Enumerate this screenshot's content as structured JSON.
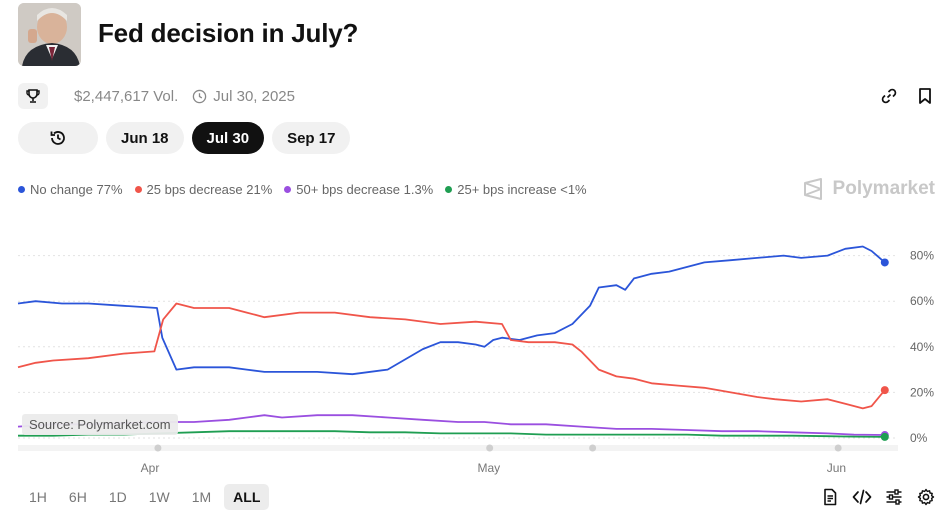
{
  "header": {
    "title": "Fed decision in July?",
    "volume": "$2,447,617 Vol.",
    "end_date": "Jul 30, 2025"
  },
  "tabs": {
    "items": [
      {
        "label": "Jun 18",
        "active": false
      },
      {
        "label": "Jul 30",
        "active": true
      },
      {
        "label": "Sep 17",
        "active": false
      }
    ]
  },
  "legend": {
    "items": [
      {
        "label": "No change 77%",
        "color": "#2b55d9"
      },
      {
        "label": "25 bps decrease 21%",
        "color": "#f0554a"
      },
      {
        "label": "50+ bps decrease 1.3%",
        "color": "#9a4fe0"
      },
      {
        "label": "25+ bps increase <1%",
        "color": "#1f9e52"
      }
    ]
  },
  "brand": "Polymarket",
  "source_label": "Source: Polymarket.com",
  "time_ranges": {
    "items": [
      "1H",
      "6H",
      "1D",
      "1W",
      "1M",
      "ALL"
    ],
    "active": "ALL"
  },
  "colors": {
    "no_change": "#2b55d9",
    "cut_25": "#f0554a",
    "cut_50": "#9a4fe0",
    "hike_25": "#1f9e52"
  },
  "icons": [
    "trophy-icon",
    "clock-icon",
    "link-icon",
    "bookmark-icon",
    "history-icon",
    "polymarket-logo-icon",
    "document-icon",
    "embed-icon",
    "sliders-icon",
    "settings-icon"
  ],
  "chart_data": {
    "type": "line",
    "x_ticks": [
      "Apr",
      "May",
      "Jun"
    ],
    "y_ticks": [
      "0%",
      "20%",
      "40%",
      "60%",
      "80%"
    ],
    "ylim": [
      0,
      90
    ],
    "y_unit": "%",
    "grid": true,
    "x_domain": [
      0,
      100
    ],
    "x_tick_positions": [
      15,
      53.5,
      93
    ],
    "series": [
      {
        "name": "No change",
        "color": "#2b55d9",
        "end_value": 77,
        "points": [
          [
            0,
            59
          ],
          [
            2,
            60
          ],
          [
            5,
            59
          ],
          [
            8,
            59
          ],
          [
            12,
            58
          ],
          [
            15.8,
            57
          ],
          [
            16.4,
            44
          ],
          [
            18,
            30
          ],
          [
            20,
            31
          ],
          [
            24,
            31
          ],
          [
            26,
            30
          ],
          [
            28,
            29
          ],
          [
            34,
            29
          ],
          [
            38,
            28
          ],
          [
            42,
            30
          ],
          [
            46,
            39
          ],
          [
            48,
            42
          ],
          [
            50,
            42
          ],
          [
            52,
            41
          ],
          [
            53,
            40
          ],
          [
            54,
            43
          ],
          [
            55,
            44
          ],
          [
            57,
            43
          ],
          [
            59,
            45
          ],
          [
            61,
            46
          ],
          [
            63,
            50
          ],
          [
            65,
            58
          ],
          [
            66,
            66
          ],
          [
            68,
            67
          ],
          [
            69,
            65
          ],
          [
            70,
            70
          ],
          [
            72,
            72
          ],
          [
            74,
            73
          ],
          [
            76,
            75
          ],
          [
            78,
            77
          ],
          [
            81,
            78
          ],
          [
            84,
            79
          ],
          [
            87,
            80
          ],
          [
            89,
            79
          ],
          [
            92,
            80
          ],
          [
            94,
            83
          ],
          [
            96,
            84
          ],
          [
            97,
            82
          ],
          [
            98.5,
            77
          ]
        ]
      },
      {
        "name": "25 bps decrease",
        "color": "#f0554a",
        "end_value": 21,
        "points": [
          [
            0,
            31
          ],
          [
            2,
            33
          ],
          [
            4,
            34
          ],
          [
            8,
            35
          ],
          [
            12,
            37
          ],
          [
            15.5,
            38
          ],
          [
            16.5,
            52
          ],
          [
            18,
            59
          ],
          [
            20,
            57
          ],
          [
            24,
            57
          ],
          [
            26,
            55
          ],
          [
            28,
            53
          ],
          [
            32,
            55
          ],
          [
            36,
            55
          ],
          [
            40,
            53
          ],
          [
            44,
            52
          ],
          [
            48,
            50
          ],
          [
            52,
            51
          ],
          [
            55,
            50
          ],
          [
            56,
            43
          ],
          [
            58,
            42
          ],
          [
            61,
            42
          ],
          [
            63,
            41
          ],
          [
            64,
            38
          ],
          [
            66,
            30
          ],
          [
            68,
            27
          ],
          [
            70,
            26
          ],
          [
            72,
            24
          ],
          [
            75,
            23
          ],
          [
            78,
            22
          ],
          [
            81,
            20
          ],
          [
            84,
            18
          ],
          [
            86,
            17
          ],
          [
            89,
            16
          ],
          [
            92,
            17
          ],
          [
            94,
            15
          ],
          [
            96,
            13
          ],
          [
            97,
            14
          ],
          [
            98.5,
            21
          ]
        ]
      },
      {
        "name": "50+ bps decrease",
        "color": "#9a4fe0",
        "end_value": 1.3,
        "points": [
          [
            0,
            5
          ],
          [
            4,
            6
          ],
          [
            8,
            6
          ],
          [
            12,
            6.5
          ],
          [
            16,
            7
          ],
          [
            20,
            7
          ],
          [
            24,
            8
          ],
          [
            26,
            9
          ],
          [
            28,
            10
          ],
          [
            30,
            9
          ],
          [
            34,
            10
          ],
          [
            38,
            10
          ],
          [
            42,
            9
          ],
          [
            46,
            8
          ],
          [
            50,
            7
          ],
          [
            53,
            7
          ],
          [
            56,
            6
          ],
          [
            60,
            6
          ],
          [
            64,
            5
          ],
          [
            68,
            4
          ],
          [
            72,
            4
          ],
          [
            76,
            3.5
          ],
          [
            80,
            3
          ],
          [
            84,
            3
          ],
          [
            88,
            2.5
          ],
          [
            92,
            2
          ],
          [
            95,
            1.5
          ],
          [
            98.5,
            1.3
          ]
        ]
      },
      {
        "name": "25+ bps increase",
        "color": "#1f9e52",
        "end_value": 0.5,
        "points": [
          [
            0,
            1
          ],
          [
            4,
            1
          ],
          [
            8,
            1.5
          ],
          [
            12,
            1.5
          ],
          [
            16,
            2
          ],
          [
            20,
            2.5
          ],
          [
            24,
            3
          ],
          [
            28,
            3
          ],
          [
            32,
            3
          ],
          [
            36,
            3
          ],
          [
            40,
            2.5
          ],
          [
            44,
            2.5
          ],
          [
            48,
            2
          ],
          [
            52,
            2
          ],
          [
            56,
            2
          ],
          [
            60,
            1.5
          ],
          [
            64,
            1.5
          ],
          [
            68,
            1.5
          ],
          [
            72,
            1.5
          ],
          [
            76,
            1.5
          ],
          [
            80,
            1
          ],
          [
            84,
            1
          ],
          [
            88,
            1
          ],
          [
            92,
            0.8
          ],
          [
            95,
            0.6
          ],
          [
            98.5,
            0.5
          ]
        ]
      }
    ]
  }
}
